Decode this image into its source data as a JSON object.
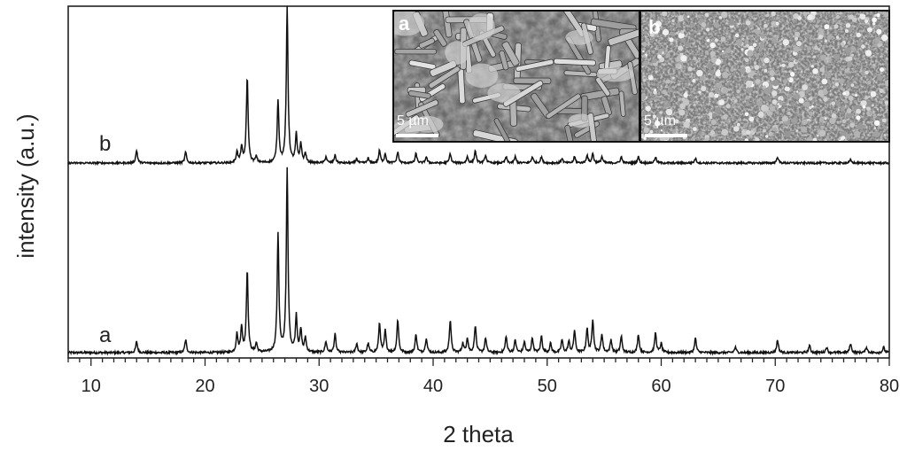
{
  "chart_data": {
    "type": "line",
    "xlabel": "2 theta",
    "ylabel": "intensity (a.u.)",
    "xlim": [
      8,
      80
    ],
    "x_ticks": [
      10,
      20,
      30,
      40,
      50,
      60,
      70,
      80
    ],
    "y_ticks_shown": false,
    "series": [
      {
        "label": "a",
        "peaks": [
          [
            14.0,
            0.06
          ],
          [
            18.3,
            0.07
          ],
          [
            22.8,
            0.1
          ],
          [
            23.2,
            0.14
          ],
          [
            23.7,
            0.45
          ],
          [
            24.5,
            0.05
          ],
          [
            26.4,
            0.65
          ],
          [
            27.2,
            1.0
          ],
          [
            28.0,
            0.2
          ],
          [
            28.4,
            0.12
          ],
          [
            28.8,
            0.08
          ],
          [
            30.6,
            0.06
          ],
          [
            31.4,
            0.1
          ],
          [
            33.3,
            0.05
          ],
          [
            34.3,
            0.05
          ],
          [
            35.3,
            0.16
          ],
          [
            35.8,
            0.12
          ],
          [
            36.9,
            0.18
          ],
          [
            38.5,
            0.1
          ],
          [
            39.4,
            0.08
          ],
          [
            41.5,
            0.18
          ],
          [
            42.6,
            0.05
          ],
          [
            43.0,
            0.08
          ],
          [
            43.7,
            0.15
          ],
          [
            44.6,
            0.08
          ],
          [
            46.4,
            0.09
          ],
          [
            47.2,
            0.07
          ],
          [
            48.0,
            0.06
          ],
          [
            48.7,
            0.08
          ],
          [
            49.5,
            0.09
          ],
          [
            50.3,
            0.05
          ],
          [
            51.3,
            0.07
          ],
          [
            51.9,
            0.06
          ],
          [
            52.4,
            0.12
          ],
          [
            53.5,
            0.13
          ],
          [
            54.0,
            0.18
          ],
          [
            54.8,
            0.1
          ],
          [
            55.6,
            0.07
          ],
          [
            56.5,
            0.09
          ],
          [
            58.0,
            0.1
          ],
          [
            59.5,
            0.11
          ],
          [
            60.0,
            0.05
          ],
          [
            63.0,
            0.08
          ],
          [
            66.5,
            0.03
          ],
          [
            70.2,
            0.07
          ],
          [
            73.0,
            0.04
          ],
          [
            74.5,
            0.03
          ],
          [
            76.6,
            0.05
          ],
          [
            78.0,
            0.03
          ],
          [
            79.5,
            0.03
          ]
        ],
        "baseline": 0,
        "scale": 1.0
      },
      {
        "label": "b",
        "peaks": [
          [
            14.0,
            0.08
          ],
          [
            18.3,
            0.07
          ],
          [
            22.8,
            0.07
          ],
          [
            23.2,
            0.1
          ],
          [
            23.7,
            0.55
          ],
          [
            24.5,
            0.04
          ],
          [
            26.4,
            0.4
          ],
          [
            27.2,
            1.0
          ],
          [
            28.0,
            0.18
          ],
          [
            28.4,
            0.12
          ],
          [
            28.8,
            0.06
          ],
          [
            30.6,
            0.04
          ],
          [
            31.4,
            0.05
          ],
          [
            33.3,
            0.03
          ],
          [
            34.3,
            0.03
          ],
          [
            35.3,
            0.08
          ],
          [
            35.8,
            0.06
          ],
          [
            36.9,
            0.07
          ],
          [
            38.5,
            0.06
          ],
          [
            39.4,
            0.04
          ],
          [
            41.5,
            0.06
          ],
          [
            43.0,
            0.04
          ],
          [
            43.7,
            0.08
          ],
          [
            44.6,
            0.05
          ],
          [
            46.4,
            0.04
          ],
          [
            47.2,
            0.04
          ],
          [
            48.7,
            0.04
          ],
          [
            49.5,
            0.04
          ],
          [
            51.3,
            0.03
          ],
          [
            52.4,
            0.04
          ],
          [
            53.5,
            0.05
          ],
          [
            54.0,
            0.06
          ],
          [
            54.8,
            0.04
          ],
          [
            56.5,
            0.04
          ],
          [
            58.0,
            0.04
          ],
          [
            59.5,
            0.04
          ],
          [
            63.0,
            0.03
          ],
          [
            70.2,
            0.04
          ],
          [
            76.6,
            0.02
          ]
        ],
        "baseline": 1,
        "scale": 1.0
      }
    ],
    "insets": [
      {
        "label": "a",
        "scale_bar": "5 µm",
        "texture": "rods"
      },
      {
        "label": "b",
        "scale_bar": "5 µm",
        "texture": "grains"
      }
    ],
    "colors": {
      "line": "#111111",
      "axis": "#222222",
      "inset_bg": "#5a5a5a"
    }
  }
}
